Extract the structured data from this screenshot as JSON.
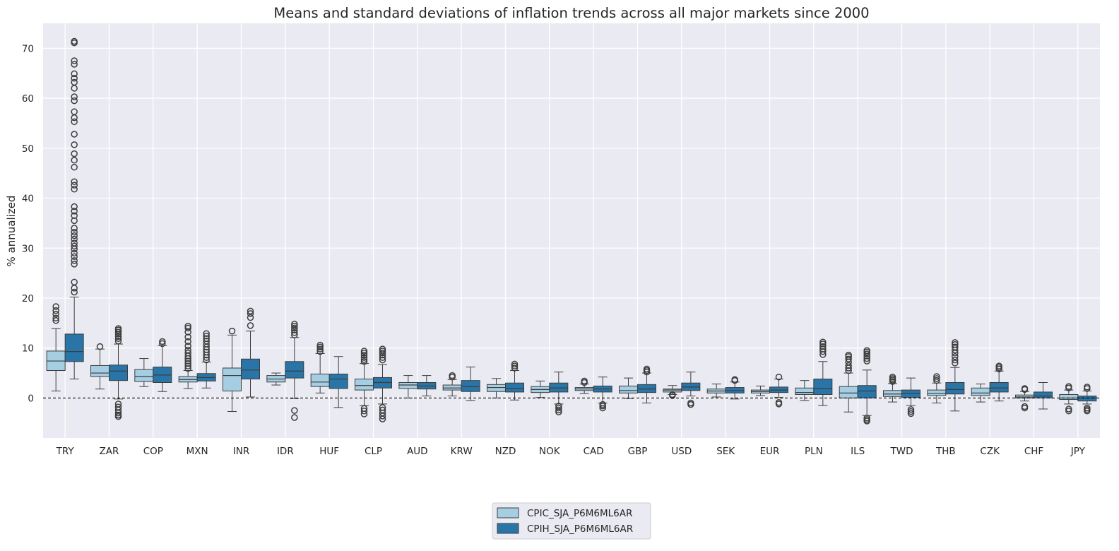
{
  "chart_data": {
    "type": "box",
    "title": "Means and standard deviations of inflation trends across all major markets since 2000",
    "xlabel": "",
    "ylabel": "% annualized",
    "ylim": [
      -8,
      75
    ],
    "yticks": [
      0,
      10,
      20,
      30,
      40,
      50,
      60,
      70
    ],
    "reference_line": 0,
    "legend_position": "below center",
    "categories": [
      "TRY",
      "ZAR",
      "COP",
      "MXN",
      "INR",
      "IDR",
      "HUF",
      "CLP",
      "AUD",
      "KRW",
      "NZD",
      "NOK",
      "CAD",
      "GBP",
      "USD",
      "SEK",
      "EUR",
      "PLN",
      "ILS",
      "TWD",
      "THB",
      "CZK",
      "CHF",
      "JPY"
    ],
    "series": [
      {
        "name": "CPIC_SJA_P6M6ML6AR",
        "color": "#a6cee3",
        "boxes": [
          {
            "wlo": 1.4,
            "q1": 5.5,
            "med": 7.4,
            "q3": 9.4,
            "whi": 13.9,
            "outliers": [
              15.5,
              16.0,
              16.8,
              17.5,
              18.3
            ]
          },
          {
            "wlo": 1.8,
            "q1": 4.3,
            "med": 5.0,
            "q3": 6.5,
            "whi": 9.8,
            "outliers": [
              10.3
            ]
          },
          {
            "wlo": 2.3,
            "q1": 3.3,
            "med": 4.3,
            "q3": 5.7,
            "whi": 7.9,
            "outliers": []
          },
          {
            "wlo": 1.9,
            "q1": 3.2,
            "med": 3.7,
            "q3": 4.3,
            "whi": 5.5,
            "outliers": [
              5.9,
              6.4,
              6.9,
              7.4,
              7.9,
              8.4,
              9.0,
              9.6,
              10.4,
              11.3,
              12.2,
              13.2,
              14.0,
              14.4
            ]
          },
          {
            "wlo": -2.7,
            "q1": 1.4,
            "med": 4.5,
            "q3": 6.0,
            "whi": 12.6,
            "outliers": [
              13.4
            ]
          },
          {
            "wlo": 2.6,
            "q1": 3.2,
            "med": 3.8,
            "q3": 4.5,
            "whi": 5.0,
            "outliers": []
          },
          {
            "wlo": 1.0,
            "q1": 2.3,
            "med": 3.2,
            "q3": 4.8,
            "whi": 8.9,
            "outliers": [
              9.3,
              9.8,
              10.2,
              10.6
            ]
          },
          {
            "wlo": -1.5,
            "q1": 1.6,
            "med": 2.5,
            "q3": 3.8,
            "whi": 6.9,
            "outliers": [
              7.3,
              7.7,
              8.1,
              8.6,
              9.0,
              9.4,
              -2.1,
              -2.6,
              -3.2
            ]
          },
          {
            "wlo": 0.0,
            "q1": 1.9,
            "med": 2.6,
            "q3": 3.1,
            "whi": 4.5,
            "outliers": []
          },
          {
            "wlo": 0.4,
            "q1": 1.6,
            "med": 2.0,
            "q3": 2.6,
            "whi": 3.7,
            "outliers": [
              4.2,
              4.5
            ]
          },
          {
            "wlo": 0.0,
            "q1": 1.3,
            "med": 2.1,
            "q3": 2.7,
            "whi": 3.9,
            "outliers": []
          },
          {
            "wlo": 0.1,
            "q1": 1.1,
            "med": 1.7,
            "q3": 2.3,
            "whi": 3.4,
            "outliers": []
          },
          {
            "wlo": 0.9,
            "q1": 1.5,
            "med": 1.8,
            "q3": 2.1,
            "whi": 2.8,
            "outliers": [
              3.1,
              3.4
            ]
          },
          {
            "wlo": -0.1,
            "q1": 1.0,
            "med": 1.5,
            "q3": 2.4,
            "whi": 4.0,
            "outliers": []
          },
          {
            "wlo": 0.7,
            "q1": 1.2,
            "med": 1.6,
            "q3": 1.8,
            "whi": 2.5,
            "outliers": [
              0.5,
              0.7
            ]
          },
          {
            "wlo": 0.2,
            "q1": 1.0,
            "med": 1.4,
            "q3": 1.8,
            "whi": 2.8,
            "outliers": []
          },
          {
            "wlo": 0.5,
            "q1": 1.0,
            "med": 1.3,
            "q3": 1.6,
            "whi": 2.4,
            "outliers": []
          },
          {
            "wlo": -0.5,
            "q1": 0.7,
            "med": 1.1,
            "q3": 2.0,
            "whi": 3.5,
            "outliers": []
          },
          {
            "wlo": -2.8,
            "q1": 0.0,
            "med": 1.0,
            "q3": 2.3,
            "whi": 5.0,
            "outliers": [
              5.5,
              6.0,
              6.5,
              7.2,
              7.8,
              8.3,
              8.6
            ]
          },
          {
            "wlo": -0.8,
            "q1": 0.3,
            "med": 0.8,
            "q3": 1.5,
            "whi": 2.9,
            "outliers": [
              3.3,
              3.6,
              3.9,
              4.2
            ]
          },
          {
            "wlo": -1.0,
            "q1": 0.5,
            "med": 0.9,
            "q3": 1.6,
            "whi": 3.0,
            "outliers": [
              3.5,
              3.9,
              4.3
            ]
          },
          {
            "wlo": -0.8,
            "q1": 0.5,
            "med": 1.0,
            "q3": 2.0,
            "whi": 2.8,
            "outliers": []
          },
          {
            "wlo": -0.6,
            "q1": 0.0,
            "med": 0.2,
            "q3": 0.6,
            "whi": 1.3,
            "outliers": [
              1.7,
              1.9,
              -1.7,
              -2.0
            ]
          },
          {
            "wlo": -1.2,
            "q1": -0.3,
            "med": 0.0,
            "q3": 0.7,
            "whi": 1.6,
            "outliers": [
              2.0,
              2.3,
              -2.2,
              -2.6
            ]
          }
        ]
      },
      {
        "name": "CPIH_SJA_P6M6ML6AR",
        "color": "#2a75a8",
        "boxes": [
          {
            "wlo": 3.8,
            "q1": 7.3,
            "med": 9.3,
            "q3": 12.8,
            "whi": 20.2,
            "outliers": [
              21.2,
              22.0,
              23.2,
              26.8,
              27.5,
              28.3,
              29.0,
              29.8,
              30.4,
              31.0,
              31.8,
              32.5,
              33.2,
              34.0,
              35.5,
              36.5,
              37.4,
              38.3,
              41.8,
              42.6,
              43.3,
              46.2,
              47.6,
              48.9,
              50.7,
              52.8,
              55.3,
              56.1,
              57.3,
              59.5,
              60.3,
              62.0,
              63.2,
              64.0,
              64.9,
              66.8,
              67.5,
              71.1,
              71.4
            ]
          },
          {
            "wlo": -0.2,
            "q1": 3.5,
            "med": 5.4,
            "q3": 6.6,
            "whi": 10.8,
            "outliers": [
              11.4,
              11.9,
              12.3,
              12.8,
              13.2,
              13.6,
              13.9,
              -1.2,
              -1.8,
              -2.4,
              -3.0,
              -3.4,
              -3.7
            ]
          },
          {
            "wlo": 1.3,
            "q1": 3.1,
            "med": 4.6,
            "q3": 6.2,
            "whi": 10.5,
            "outliers": [
              10.9,
              11.3
            ]
          },
          {
            "wlo": 2.0,
            "q1": 3.4,
            "med": 4.1,
            "q3": 4.9,
            "whi": 7.2,
            "outliers": [
              7.6,
              8.1,
              8.6,
              9.2,
              9.7,
              10.2,
              10.8,
              11.4,
              11.9,
              12.4,
              12.9
            ]
          },
          {
            "wlo": 0.2,
            "q1": 3.8,
            "med": 5.6,
            "q3": 7.8,
            "whi": 13.4,
            "outliers": [
              14.5,
              16.1,
              16.9,
              17.4
            ]
          },
          {
            "wlo": -0.1,
            "q1": 4.0,
            "med": 5.4,
            "q3": 7.3,
            "whi": 12.1,
            "outliers": [
              12.6,
              13.1,
              13.6,
              14.0,
              14.4,
              14.8,
              -2.5,
              -3.9
            ]
          },
          {
            "wlo": -1.9,
            "q1": 1.9,
            "med": 3.8,
            "q3": 4.8,
            "whi": 8.3,
            "outliers": []
          },
          {
            "wlo": -1.2,
            "q1": 2.0,
            "med": 3.1,
            "q3": 4.1,
            "whi": 6.7,
            "outliers": [
              7.6,
              8.1,
              8.6,
              9.0,
              9.4,
              9.8,
              -1.9,
              -2.4,
              -3.0,
              -3.6,
              -4.2
            ]
          },
          {
            "wlo": 0.4,
            "q1": 1.8,
            "med": 2.4,
            "q3": 3.1,
            "whi": 4.5,
            "outliers": []
          },
          {
            "wlo": -0.5,
            "q1": 1.3,
            "med": 2.3,
            "q3": 3.5,
            "whi": 6.2,
            "outliers": []
          },
          {
            "wlo": -0.4,
            "q1": 1.2,
            "med": 1.9,
            "q3": 3.0,
            "whi": 5.5,
            "outliers": [
              6.0,
              6.4,
              6.8
            ]
          },
          {
            "wlo": -1.2,
            "q1": 1.2,
            "med": 2.0,
            "q3": 3.0,
            "whi": 5.2,
            "outliers": [
              -1.6,
              -2.0,
              -2.4,
              -2.8
            ]
          },
          {
            "wlo": -1.0,
            "q1": 1.2,
            "med": 1.8,
            "q3": 2.4,
            "whi": 4.2,
            "outliers": [
              -1.3,
              -1.6,
              -2.0
            ]
          },
          {
            "wlo": -1.0,
            "q1": 1.1,
            "med": 1.8,
            "q3": 2.7,
            "whi": 5.0,
            "outliers": [
              5.2,
              5.5,
              5.8
            ]
          },
          {
            "wlo": 0.4,
            "q1": 1.5,
            "med": 2.2,
            "q3": 3.0,
            "whi": 5.2,
            "outliers": [
              -1.0,
              -1.3
            ]
          },
          {
            "wlo": -0.2,
            "q1": 1.0,
            "med": 1.5,
            "q3": 2.1,
            "whi": 3.2,
            "outliers": [
              3.5,
              3.7
            ]
          },
          {
            "wlo": 0.1,
            "q1": 1.1,
            "med": 1.6,
            "q3": 2.2,
            "whi": 3.8,
            "outliers": [
              4.2,
              -0.9,
              -1.2
            ]
          },
          {
            "wlo": -1.5,
            "q1": 0.7,
            "med": 1.9,
            "q3": 3.8,
            "whi": 7.3,
            "outliers": [
              8.7,
              9.3,
              9.8,
              10.3,
              10.8,
              11.2
            ]
          },
          {
            "wlo": -3.5,
            "q1": 0.0,
            "med": 1.4,
            "q3": 2.5,
            "whi": 5.6,
            "outliers": [
              7.4,
              7.9,
              8.4,
              8.8,
              9.2,
              9.5,
              -4.0,
              -4.3,
              -4.6
            ]
          },
          {
            "wlo": -1.5,
            "q1": 0.1,
            "med": 0.9,
            "q3": 1.6,
            "whi": 4.0,
            "outliers": [
              -2.3,
              -2.7,
              -3.1
            ]
          },
          {
            "wlo": -2.6,
            "q1": 0.8,
            "med": 1.7,
            "q3": 3.1,
            "whi": 6.1,
            "outliers": [
              7.0,
              7.6,
              8.3,
              9.0,
              9.6,
              10.2,
              10.7,
              11.1
            ]
          },
          {
            "wlo": -0.6,
            "q1": 1.2,
            "med": 2.0,
            "q3": 3.1,
            "whi": 5.4,
            "outliers": [
              5.8,
              6.1,
              6.4
            ]
          },
          {
            "wlo": -2.2,
            "q1": 0.0,
            "med": 0.4,
            "q3": 1.2,
            "whi": 3.1,
            "outliers": []
          },
          {
            "wlo": -1.2,
            "q1": -0.6,
            "med": 0.0,
            "q3": 0.4,
            "whi": 1.4,
            "outliers": [
              1.9,
              2.2,
              -2.0,
              -2.3,
              -2.6
            ]
          }
        ]
      }
    ]
  }
}
